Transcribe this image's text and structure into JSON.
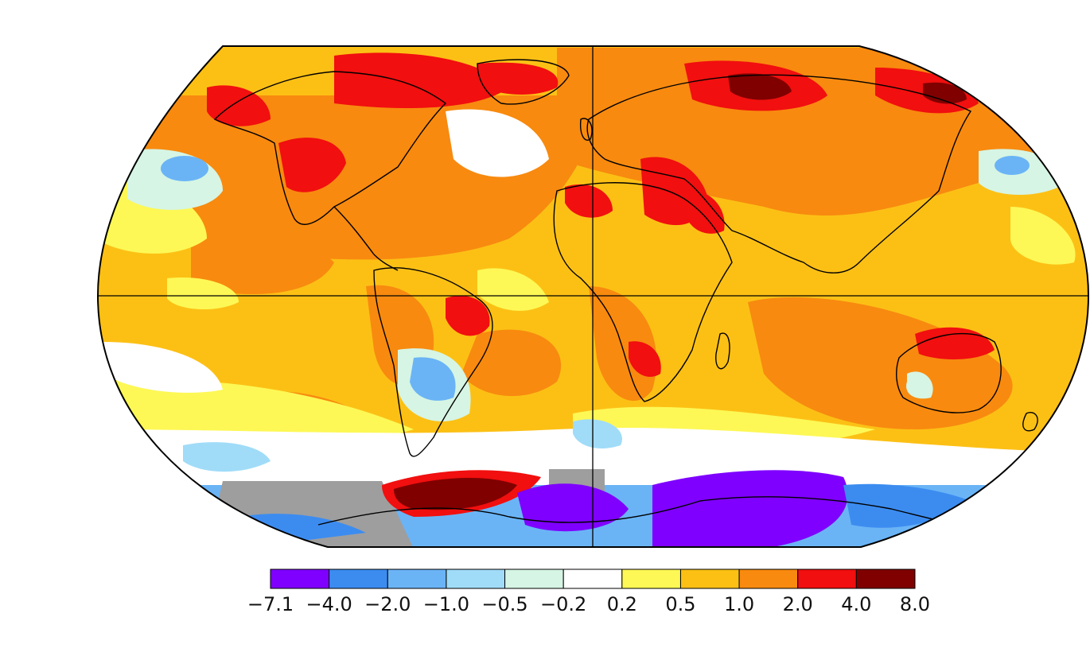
{
  "map": {
    "projection": "Robinson",
    "color_scale": "temperature anomaly",
    "no_data_color": "#9e9e9e",
    "ocean_land_outline_color": "#000000"
  },
  "legend": {
    "swatches": [
      {
        "color": "#7f00ff"
      },
      {
        "color": "#3c8cf0"
      },
      {
        "color": "#6ab4f6"
      },
      {
        "color": "#a0dcf8"
      },
      {
        "color": "#d6f5e4"
      },
      {
        "color": "#ffffff"
      },
      {
        "color": "#fdf855"
      },
      {
        "color": "#fcc015"
      },
      {
        "color": "#f88a0f"
      },
      {
        "color": "#f10f0f"
      },
      {
        "color": "#800000"
      }
    ],
    "tick_labels": [
      "−7.1",
      "−4.0",
      "−2.0",
      "−1.0",
      "−0.5",
      "−0.2",
      "0.2",
      "0.5",
      "1.0",
      "2.0",
      "4.0",
      "8.0"
    ]
  }
}
